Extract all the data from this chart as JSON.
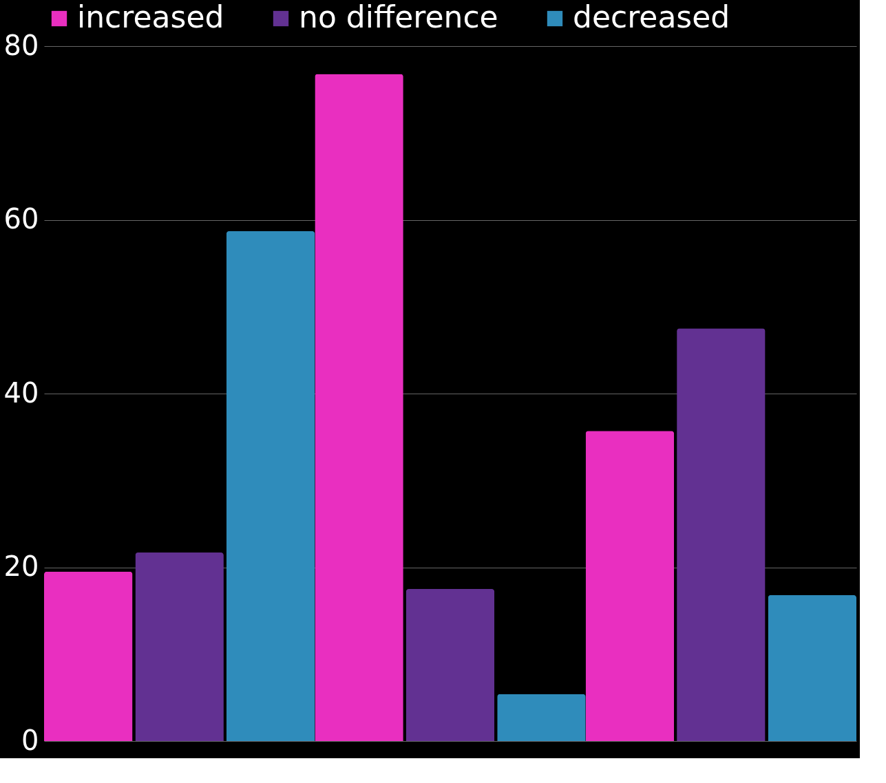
{
  "chart_data": {
    "type": "bar",
    "categories": [
      null,
      null,
      null
    ],
    "series": [
      {
        "name": "increased",
        "color": "#e92fc0",
        "values": [
          19.5,
          76.8,
          35.7
        ]
      },
      {
        "name": "no difference",
        "color": "#623192",
        "values": [
          21.7,
          17.5,
          47.5
        ]
      },
      {
        "name": "decreased",
        "color": "#2f8cbb",
        "values": [
          58.7,
          5.4,
          16.8
        ]
      }
    ],
    "ylim": [
      0,
      80
    ],
    "yticks": [
      0,
      20,
      40,
      60,
      80
    ],
    "grid": "y",
    "legend": "top",
    "tick_labels": "y"
  }
}
